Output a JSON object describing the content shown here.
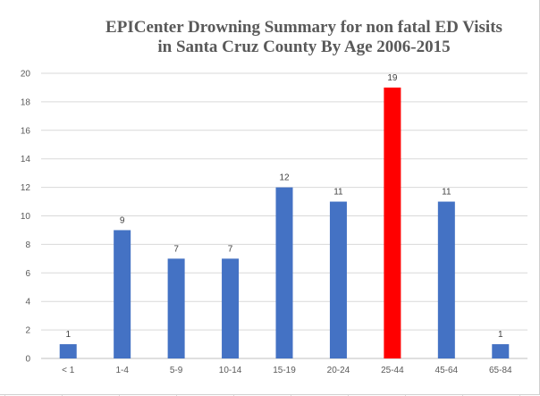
{
  "chart_data": {
    "type": "bar",
    "title_line1": "EPICenter Drowning Summary for non fatal ED Visits",
    "title_line2": "in Santa Cruz County By Age 2006-2015",
    "categories": [
      "< 1",
      "1-4",
      "5-9",
      "10-14",
      "15-19",
      "20-24",
      "25-44",
      "45-64",
      "65-84"
    ],
    "values": [
      1,
      9,
      7,
      7,
      12,
      11,
      19,
      11,
      1
    ],
    "highlight_category": "25-44",
    "bar_color": "#4472C4",
    "highlight_color": "#FF0000",
    "ylim": [
      0,
      20
    ],
    "yticks": [
      0,
      2,
      4,
      6,
      8,
      10,
      12,
      14,
      16,
      18,
      20
    ],
    "xlabel": "",
    "ylabel": "",
    "grid": true,
    "legend": "none"
  }
}
